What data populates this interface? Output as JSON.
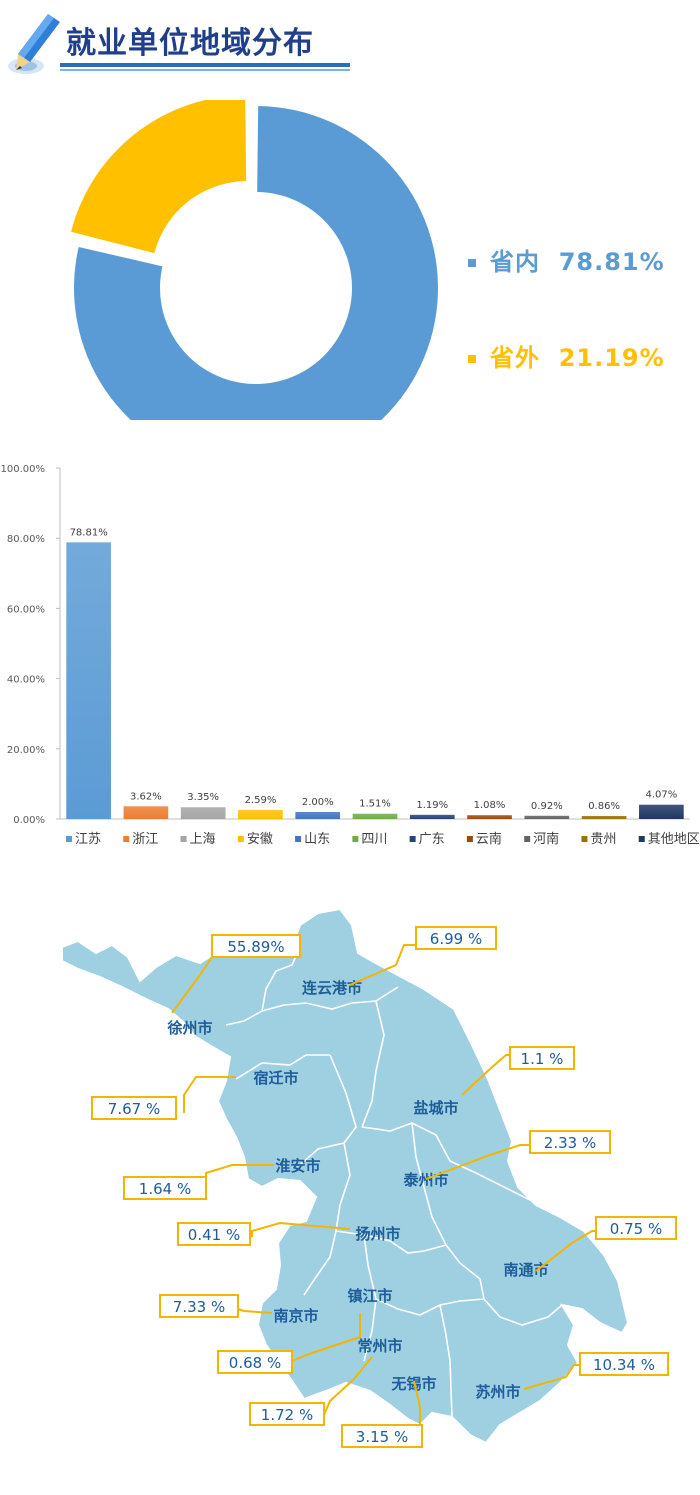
{
  "header": {
    "title": "就业单位地域分布"
  },
  "colors": {
    "blue": "#5b9bd5",
    "gold": "#ffc000",
    "title": "#1f3f8a",
    "map_fill": "#9fd0e2",
    "map_line": "#ffffff",
    "callout": "#f2b600"
  },
  "chart_data": [
    {
      "type": "pie",
      "hole": true,
      "slices": [
        {
          "label": "省内",
          "value": 78.81,
          "display": "78.81%",
          "color": "#5b9bd5"
        },
        {
          "label": "省外",
          "value": 21.19,
          "display": "21.19%",
          "color": "#ffc000"
        }
      ],
      "legend_position": "right"
    },
    {
      "type": "bar",
      "categories": [
        "江苏",
        "浙江",
        "上海",
        "安徽",
        "山东",
        "四川",
        "广东",
        "云南",
        "河南",
        "贵州",
        "其他地区"
      ],
      "values": [
        78.81,
        3.62,
        3.35,
        2.59,
        2.0,
        1.51,
        1.19,
        1.08,
        0.92,
        0.86,
        4.07
      ],
      "value_labels": [
        "78.81%",
        "3.62%",
        "3.35%",
        "2.59%",
        "2.00%",
        "1.51%",
        "1.19%",
        "1.08%",
        "0.92%",
        "0.86%",
        "4.07%"
      ],
      "colors": [
        "#5b9bd5",
        "#ed7d31",
        "#a5a5a5",
        "#ffc000",
        "#4472c4",
        "#70ad47",
        "#264478",
        "#9e480e",
        "#636363",
        "#997300",
        "#203864"
      ],
      "ylim": [
        0,
        100
      ],
      "yticks": [
        "0.00%",
        "20.00%",
        "40.00%",
        "60.00%",
        "80.00%",
        "100.00%"
      ],
      "legend_position": "bottom",
      "grid": false
    },
    {
      "type": "map",
      "regions": [
        {
          "name": "徐州市",
          "value": 55.89,
          "label": "55.89%"
        },
        {
          "name": "连云港市",
          "value": 6.99,
          "label": "6.99 %"
        },
        {
          "name": "宿迁市",
          "value": 7.67,
          "label": "7.67 %"
        },
        {
          "name": "盐城市",
          "value": 1.1,
          "label": "1.1 %"
        },
        {
          "name": "淮安市",
          "value": 1.64,
          "label": "1.64 %"
        },
        {
          "name": "泰州市",
          "value": 2.33,
          "label": "2.33 %"
        },
        {
          "name": "扬州市",
          "value": 0.41,
          "label": "0.41 %"
        },
        {
          "name": "南通市",
          "value": 0.75,
          "label": "0.75 %"
        },
        {
          "name": "南京市",
          "value": 7.33,
          "label": "7.33 %"
        },
        {
          "name": "镇江市",
          "value": 0.68,
          "label": "0.68 %"
        },
        {
          "name": "常州市",
          "value": 1.72,
          "label": "1.72 %"
        },
        {
          "name": "无锡市",
          "value": 3.15,
          "label": "3.15 %"
        },
        {
          "name": "苏州市",
          "value": 10.34,
          "label": "10.34 %"
        }
      ]
    }
  ]
}
